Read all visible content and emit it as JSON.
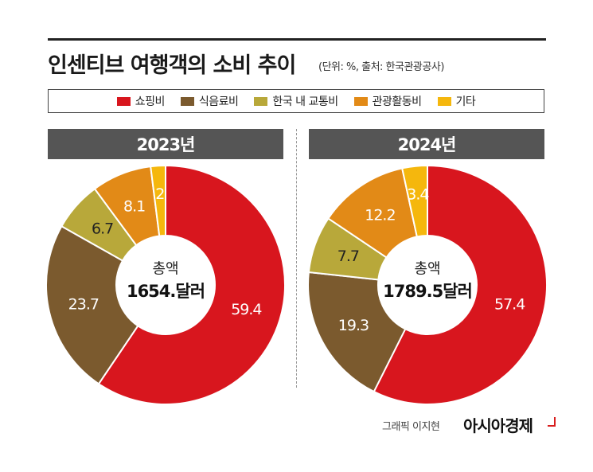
{
  "header": {
    "title": "인센티브 여행객의 소비 추이",
    "source": "(단위: %, 출처: 한국관광공사)"
  },
  "colors": {
    "shopping": "#d8161e",
    "food": "#7b5a2e",
    "transport": "#b8a83a",
    "tourism": "#e28a17",
    "other": "#f5b70d",
    "badge": "#555555"
  },
  "chart_data": [
    {
      "type": "pie",
      "title": "2023년",
      "categories": [
        "쇼핑비",
        "식음료비",
        "한국 내 교통비",
        "관광활동비",
        "기타"
      ],
      "values": [
        59.4,
        23.7,
        6.7,
        8.1,
        2
      ],
      "value_labels": [
        "59.4",
        "23.7",
        "6.7",
        "8.1",
        "2"
      ],
      "center_label": "총액",
      "center_value": "1654.달러",
      "legend_position": "top"
    },
    {
      "type": "pie",
      "title": "2024년",
      "categories": [
        "쇼핑비",
        "식음료비",
        "한국 내 교통비",
        "관광활동비",
        "기타"
      ],
      "values": [
        57.4,
        19.3,
        7.7,
        12.2,
        3.4
      ],
      "value_labels": [
        "57.4",
        "19.3",
        "7.7",
        "12.2",
        "3.4"
      ],
      "center_label": "총액",
      "center_value": "1789.5달러",
      "legend_position": "top"
    }
  ],
  "legend": [
    "쇼핑비",
    "식음료비",
    "한국 내 교통비",
    "관광활동비",
    "기타"
  ],
  "footer": {
    "credit": "그래픽 이지현",
    "brand": "아시아경제"
  }
}
